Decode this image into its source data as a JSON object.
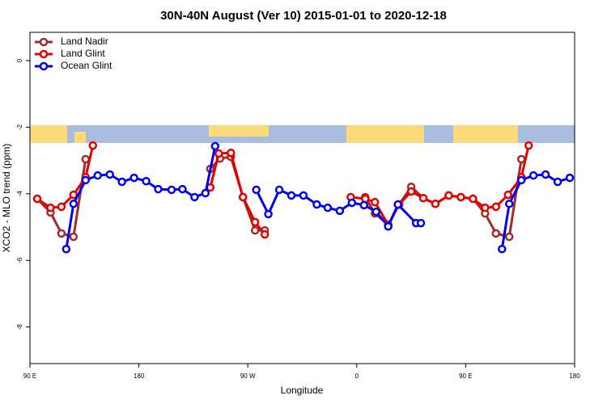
{
  "chart_data": {
    "type": "line",
    "title": "30N-40N August (Ver 10)   2015-01-01 to 2020-12-18",
    "xlabel": "Longitude",
    "ylabel": "XCO2 - MLO trend (ppm)",
    "xlim": [
      90,
      540
    ],
    "xticks": [
      {
        "value": 90,
        "label": "90 E"
      },
      180,
      {
        "value": 270,
        "label": "90 W"
      },
      0,
      {
        "value": 450,
        "label": "90 E"
      },
      {
        "value": 540,
        "label": "180"
      }
    ],
    "ylim": [
      -9.1,
      0.85
    ],
    "yticks": [
      0,
      -2,
      -4,
      -6,
      -8
    ],
    "legend": "top-left",
    "series": [
      {
        "name": "Land Nadir",
        "color": "#a52a2a",
        "x": [
          96,
          107,
          116,
          126,
          136,
          null,
          239,
          247,
          256,
          266,
          276,
          284,
          null,
          367,
          375,
          386,
          395,
          405,
          415,
          425,
          436,
          446,
          456,
          466,
          475,
          486,
          496
        ],
        "values": [
          -4.15,
          -4.56,
          -5.19,
          -5.29,
          -2.96,
          null,
          -3.25,
          -2.94,
          -2.89,
          -4.1,
          -5.1,
          -5.1,
          null,
          -4.1,
          -4.59,
          -4.93,
          -4.32,
          -3.79,
          -4.13,
          -4.3,
          -4.05,
          -4.1,
          -4.15,
          -4.59,
          -5.19,
          -5.29,
          -2.96
        ]
      },
      {
        "name": "Land Glint",
        "color": "#e60000",
        "x": [
          96,
          107,
          116,
          126,
          136,
          142,
          null,
          239,
          246,
          256,
          266,
          276,
          284,
          null,
          355,
          367,
          375,
          386,
          395,
          405,
          415,
          425,
          436,
          446,
          456,
          466,
          475,
          485,
          496,
          502
        ],
        "values": [
          -4.15,
          -4.42,
          -4.39,
          -4.03,
          -3.5,
          -2.55,
          null,
          -3.81,
          -2.79,
          -2.77,
          -4.1,
          -4.85,
          -5.22,
          null,
          -4.1,
          -4.15,
          -4.25,
          -4.93,
          -4.32,
          -3.93,
          -4.13,
          -4.3,
          -4.05,
          -4.1,
          -4.15,
          -4.42,
          -4.39,
          -4.03,
          -3.5,
          -2.55
        ]
      },
      {
        "name": "Ocean Glint",
        "color": "#0000ee",
        "x": [
          120,
          126,
          136,
          146,
          156,
          166,
          176,
          186,
          196,
          207,
          216,
          226,
          235,
          243,
          null,
          277,
          287,
          296,
          306,
          316,
          327,
          336,
          346,
          356,
          366,
          376,
          386,
          394,
          409,
          413,
          null,
          480,
          486,
          496,
          506,
          516,
          526,
          536
        ],
        "values": [
          -5.66,
          -4.3,
          -3.59,
          -3.45,
          -3.42,
          -3.64,
          -3.52,
          -3.62,
          -3.86,
          -3.88,
          -3.86,
          -4.1,
          -3.98,
          -2.57,
          null,
          -3.88,
          -4.61,
          -3.88,
          -4.05,
          -4.05,
          -4.32,
          -4.42,
          -4.51,
          -4.27,
          -4.34,
          -4.54,
          -4.98,
          -4.32,
          -4.88,
          -4.88,
          null,
          -5.66,
          -4.3,
          -3.59,
          -3.45,
          -3.42,
          -3.64,
          -3.52
        ]
      }
    ]
  }
}
